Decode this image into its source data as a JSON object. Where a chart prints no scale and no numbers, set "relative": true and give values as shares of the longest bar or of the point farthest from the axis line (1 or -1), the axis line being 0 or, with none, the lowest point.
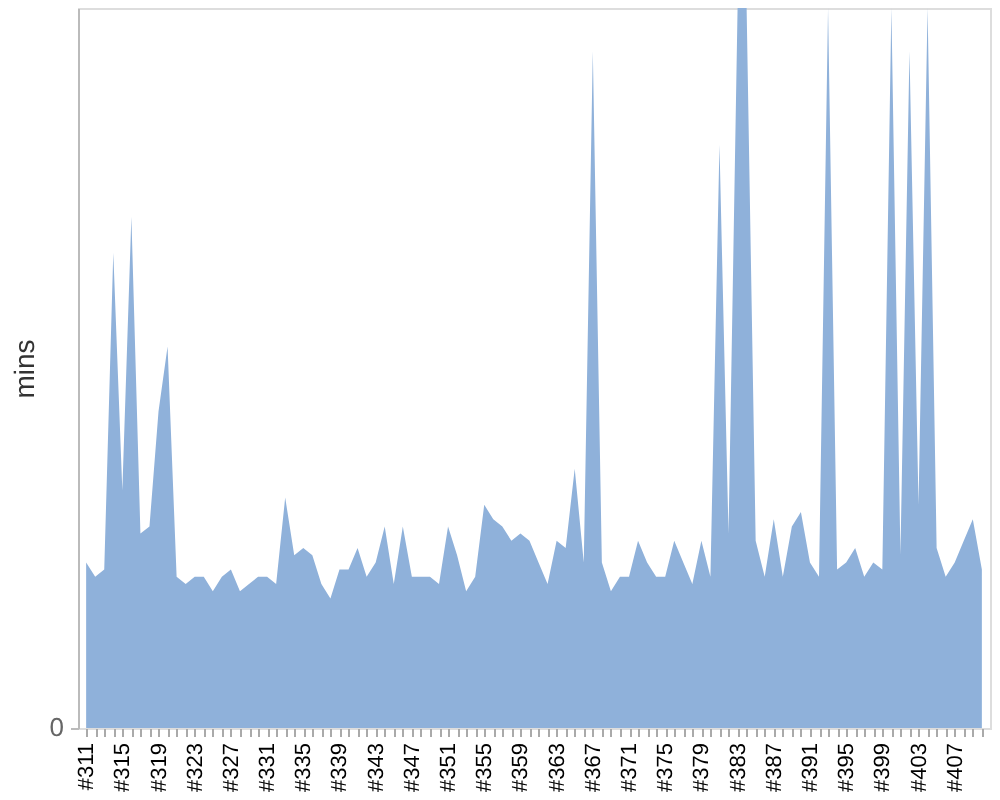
{
  "chart_data": {
    "type": "area",
    "ylabel": "mins",
    "relative": true,
    "color": "#8fb1da",
    "annotations": [
      "0"
    ],
    "categories": [
      "#311",
      null,
      null,
      null,
      "#315",
      null,
      null,
      null,
      "#319",
      null,
      null,
      null,
      "#323",
      null,
      null,
      null,
      "#327",
      null,
      null,
      null,
      "#331",
      null,
      null,
      null,
      "#335",
      null,
      null,
      null,
      "#339",
      null,
      null,
      null,
      "#343",
      null,
      null,
      null,
      "#347",
      null,
      null,
      null,
      "#351",
      null,
      null,
      null,
      "#355",
      null,
      null,
      null,
      "#359",
      null,
      null,
      null,
      "#363",
      null,
      null,
      null,
      "#367",
      null,
      null,
      null,
      "#371",
      null,
      null,
      null,
      "#375",
      null,
      null,
      null,
      "#379",
      null,
      null,
      null,
      "#383",
      null,
      null,
      null,
      "#387",
      null,
      null,
      null,
      "#391",
      null,
      null,
      null,
      "#395",
      null,
      null,
      null,
      "#399",
      null,
      null,
      null,
      "#403",
      null,
      null,
      null,
      "#407",
      null,
      null,
      null
    ],
    "values": [
      0.23,
      0.21,
      0.22,
      0.66,
      0.33,
      0.71,
      0.27,
      0.28,
      0.44,
      0.53,
      0.21,
      0.2,
      0.21,
      0.21,
      0.19,
      0.21,
      0.22,
      0.19,
      0.2,
      0.21,
      0.21,
      0.2,
      0.32,
      0.24,
      0.25,
      0.24,
      0.2,
      0.18,
      0.22,
      0.22,
      0.25,
      0.21,
      0.23,
      0.28,
      0.2,
      0.28,
      0.21,
      0.21,
      0.21,
      0.2,
      0.28,
      0.24,
      0.19,
      0.21,
      0.31,
      0.29,
      0.28,
      0.26,
      0.27,
      0.26,
      0.23,
      0.2,
      0.26,
      0.25,
      0.36,
      0.23,
      0.94,
      0.23,
      0.19,
      0.21,
      0.21,
      0.26,
      0.23,
      0.21,
      0.21,
      0.26,
      0.23,
      0.2,
      0.26,
      0.21,
      0.81,
      0.27,
      1,
      1,
      0.26,
      0.21,
      0.29,
      0.21,
      0.28,
      0.3,
      0.23,
      0.21,
      1,
      0.22,
      0.23,
      0.25,
      0.21,
      0.23,
      0.22,
      1,
      0.24,
      0.94,
      0.31,
      1,
      0.25,
      0.21,
      0.23,
      0.26,
      0.29,
      0.22
    ]
  }
}
